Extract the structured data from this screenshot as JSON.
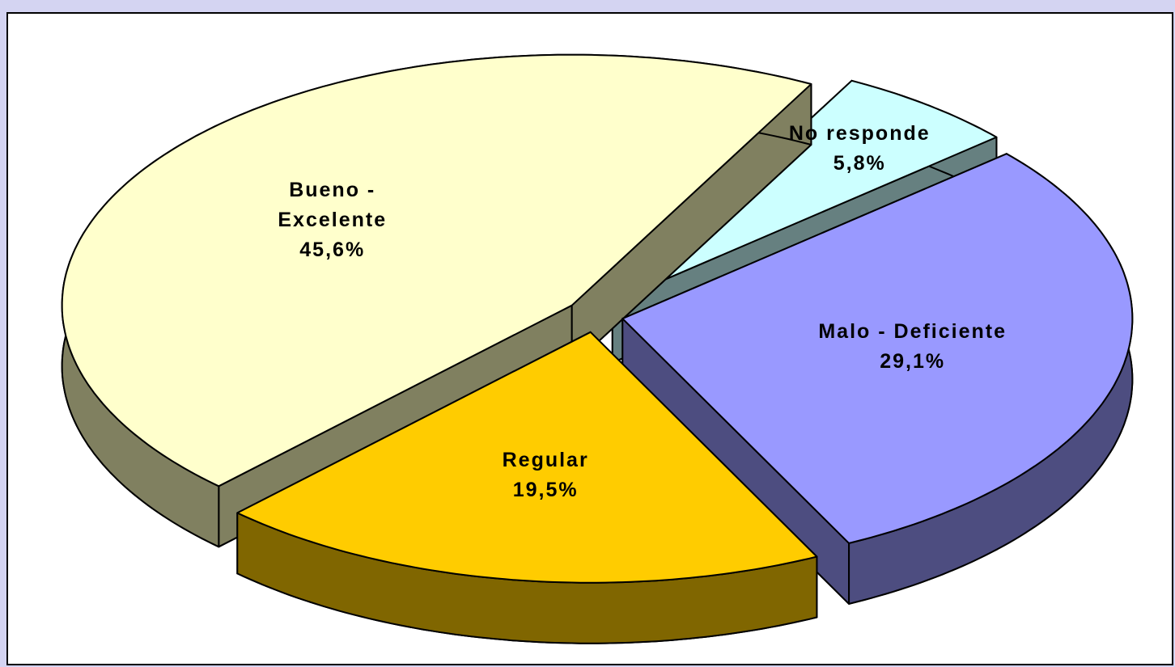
{
  "chart_data": {
    "type": "pie",
    "categories": [
      "No responde",
      "Malo - Deficiente",
      "Regular",
      "Bueno - Excelente"
    ],
    "values": [
      5.8,
      29.1,
      19.5,
      45.6
    ],
    "value_labels": [
      "5,8%",
      "29,1%",
      "19,5%",
      "45,6%"
    ],
    "colors": [
      "#ccffff",
      "#9999ff",
      "#ffcc00",
      "#ffffcc"
    ],
    "side_colors": [
      "#668080",
      "#4d4d80",
      "#806600",
      "#808060"
    ]
  }
}
